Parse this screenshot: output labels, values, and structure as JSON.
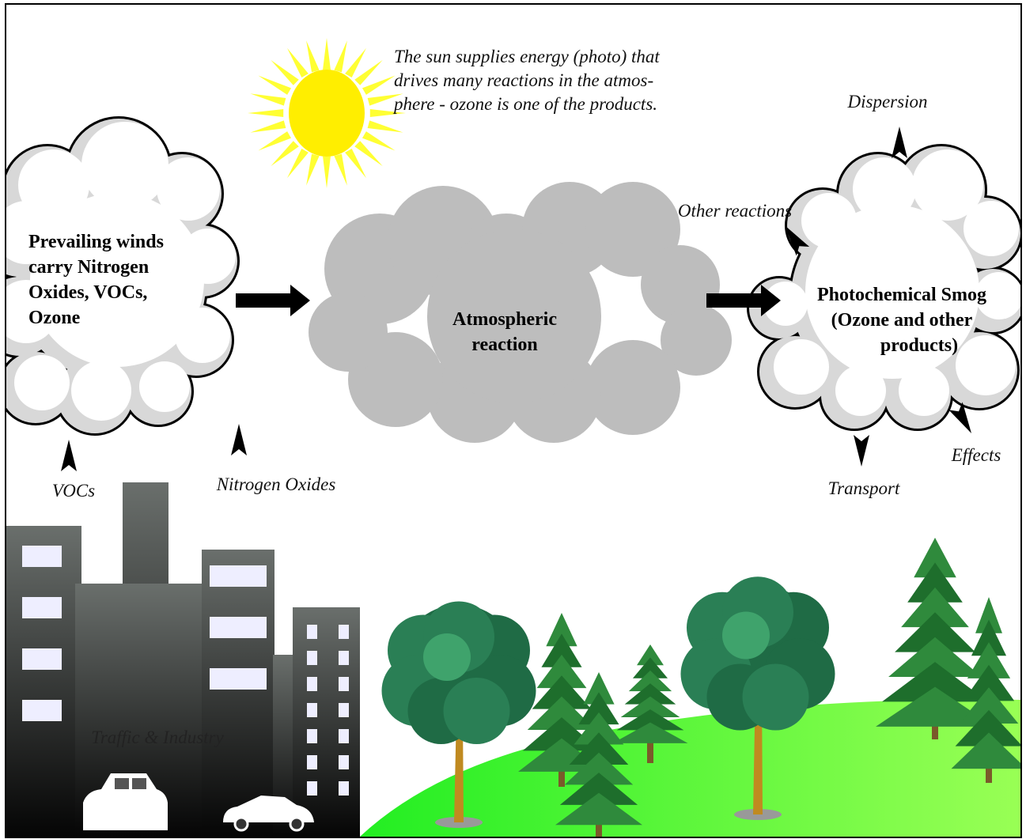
{
  "sun_note": [
    "The sun supplies energy (photo) that",
    "drives many reactions in the atmos-",
    "phere - ozone is one of the products."
  ],
  "nodes": [
    {
      "label_lines": [
        "Prevailing winds",
        "carry Nitrogen",
        "Oxides, VOCs,",
        "Ozone"
      ]
    },
    {
      "label_lines": [
        "Atmospheric",
        "reaction"
      ]
    },
    {
      "label_lines": [
        "Photochemical Smog",
        "(Ozone and other",
        "products)"
      ]
    }
  ],
  "labels": {
    "dispersion": "Dispersion",
    "other_reactions": "Other reactions",
    "transport": "Transport",
    "effects": "Effects",
    "vocs": "VOCs",
    "nitrogen_oxides": "Nitrogen Oxides",
    "traffic": "Traffic & Industry"
  }
}
